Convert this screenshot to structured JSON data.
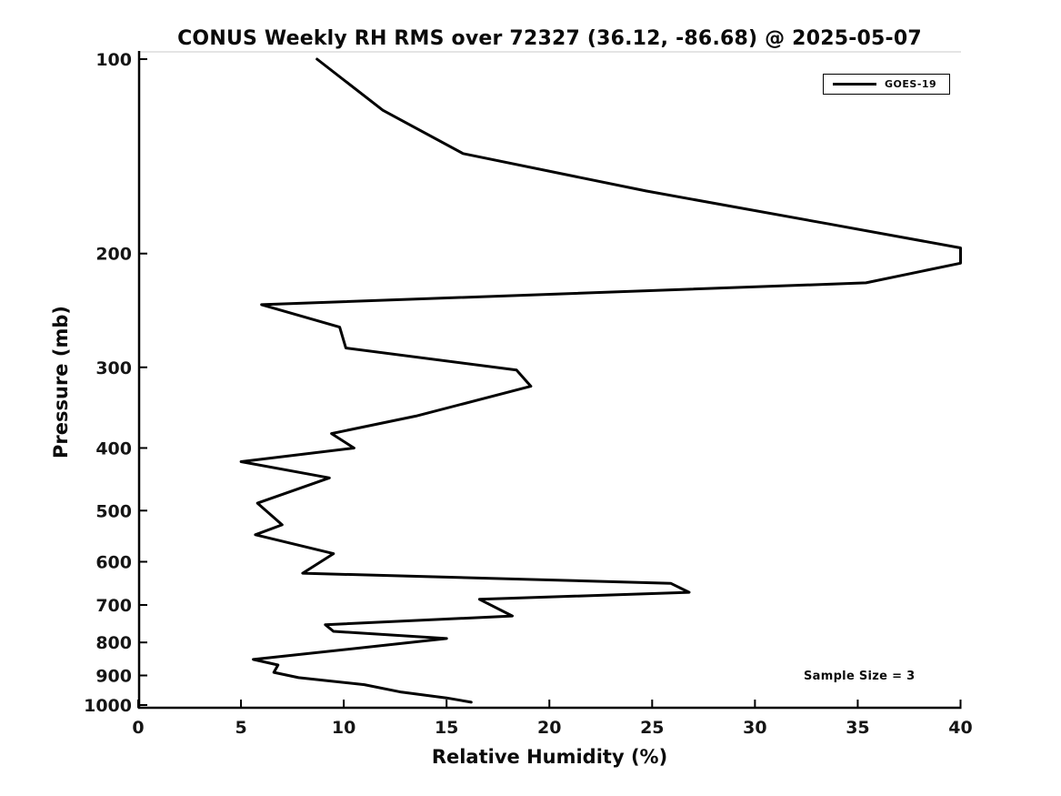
{
  "figure": {
    "background": "#ffffff",
    "axis_color": "#000000",
    "line_color": "#000000"
  },
  "chart_data": {
    "type": "line",
    "title": "CONUS Weekly RH RMS over 72327 (36.12, -86.68) @ 2025-05-07",
    "xlabel": "Relative Humidity (%)",
    "ylabel": "Pressure (mb)",
    "xlim": [
      0,
      40
    ],
    "ylim": [
      100,
      1000
    ],
    "yscale": "log",
    "y_axis_inverted": true,
    "grid": false,
    "xticks": [
      0,
      5,
      10,
      15,
      20,
      25,
      30,
      35,
      40
    ],
    "yticks": [
      100,
      200,
      300,
      400,
      500,
      600,
      700,
      800,
      900,
      1000
    ],
    "legend": {
      "position": "top-right",
      "entries": [
        "GOES-19"
      ]
    },
    "annotation": "Sample Size = 3",
    "series": [
      {
        "name": "GOES-19",
        "color": "#000000",
        "points": [
          [
            8.7,
            100
          ],
          [
            11.9,
            120
          ],
          [
            15.8,
            140
          ],
          [
            24.7,
            160
          ],
          [
            33.6,
            180
          ],
          [
            40.0,
            196
          ],
          [
            40.0,
            207
          ],
          [
            35.4,
            222
          ],
          [
            6.0,
            240
          ],
          [
            9.8,
            260
          ],
          [
            10.1,
            280
          ],
          [
            18.4,
            303
          ],
          [
            19.1,
            321
          ],
          [
            13.5,
            357
          ],
          [
            9.4,
            380
          ],
          [
            10.5,
            400
          ],
          [
            5.0,
            420
          ],
          [
            9.3,
            445
          ],
          [
            5.8,
            487
          ],
          [
            7.0,
            526
          ],
          [
            5.7,
            545
          ],
          [
            9.5,
            583
          ],
          [
            8.0,
            625
          ],
          [
            25.9,
            648
          ],
          [
            26.8,
            669
          ],
          [
            16.6,
            686
          ],
          [
            18.2,
            728
          ],
          [
            9.1,
            751
          ],
          [
            9.5,
            769
          ],
          [
            15.0,
            789
          ],
          [
            5.6,
            850
          ],
          [
            6.8,
            867
          ],
          [
            6.6,
            890
          ],
          [
            7.8,
            907
          ],
          [
            11.0,
            930
          ],
          [
            12.8,
            955
          ],
          [
            15.0,
            975
          ],
          [
            16.2,
            990
          ]
        ]
      }
    ]
  }
}
